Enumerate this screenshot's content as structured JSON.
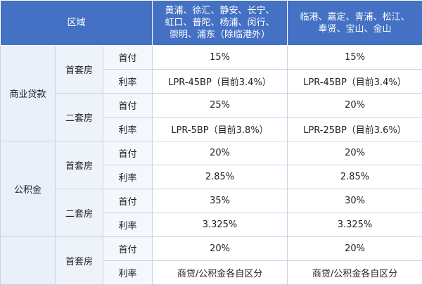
{
  "header": {
    "region_label": "区域",
    "zone_a_lines": [
      "黄浦、徐汇、静安、长宁、",
      "虹口、普陀、杨浦、闵行、",
      "崇明、浦东（除临港外）"
    ],
    "zone_b_lines": [
      "临港、嘉定、青浦、松江、",
      "奉贤、宝山、金山"
    ]
  },
  "commercial": {
    "label": "商业贷款",
    "first_home": {
      "label": "首套房",
      "down_label": "首付",
      "down_a": "15%",
      "down_b": "15%",
      "rate_label": "利率",
      "rate_a": "LPR-45BP（目前3.4%）",
      "rate_b": "LPR-45BP（目前3.4%）"
    },
    "second_home": {
      "label": "二套房",
      "down_label": "首付",
      "down_a": "25%",
      "down_b": "20%",
      "rate_label": "利率",
      "rate_a": "LPR-5BP（目前3.8%）",
      "rate_b": "LPR-25BP（目前3.6%）"
    }
  },
  "provident": {
    "label": "公积金",
    "first_home": {
      "label": "首套房",
      "down_label": "首付",
      "down_a": "20%",
      "down_b": "20%",
      "rate_label": "利率",
      "rate_a": "2.85%",
      "rate_b": "2.85%"
    },
    "second_home": {
      "label": "二套房",
      "down_label": "首付",
      "down_a": "35%",
      "down_b": "30%",
      "rate_label": "利率",
      "rate_a": "3.325%",
      "rate_b": "3.325%"
    }
  },
  "combo": {
    "first_home": {
      "label": "首套房",
      "down_label": "首付",
      "down_a": "20%",
      "down_b": "20%",
      "rate_label": "利率",
      "rate_a": "商贷/公积金各自区分",
      "rate_b": "商贷/公积金各自区分"
    }
  }
}
